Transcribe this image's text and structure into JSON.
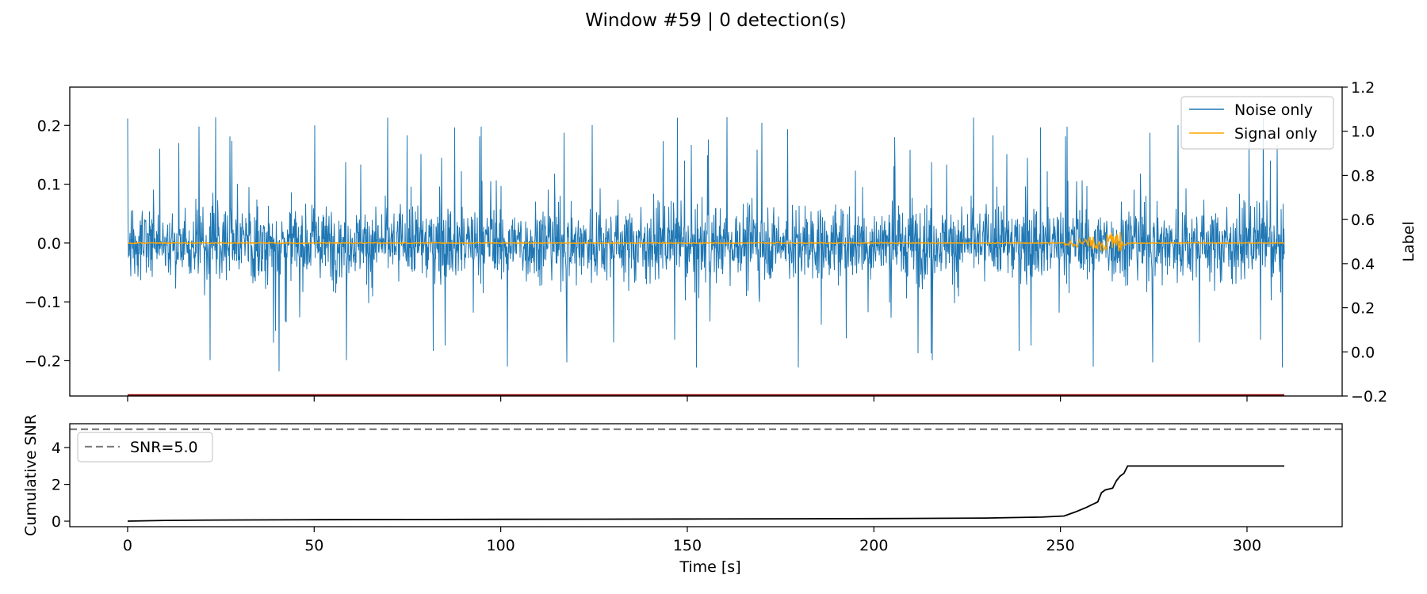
{
  "figure": {
    "title": "Window #59 | 0 detection(s)"
  },
  "chart_data": [
    {
      "type": "line",
      "panel": "waveform",
      "xlim": [
        -15.5,
        325.5
      ],
      "ylim": [
        -0.26,
        0.265
      ],
      "y2lim": [
        -0.2,
        1.2
      ],
      "xlabel": "",
      "ylabel": "",
      "y2label": "Label",
      "yticks": [
        -0.2,
        -0.1,
        0.0,
        0.1,
        0.2
      ],
      "ytick_labels": [
        "−0.2",
        "−0.1",
        "0.0",
        "0.1",
        "0.2"
      ],
      "y2ticks": [
        -0.2,
        0.0,
        0.2,
        0.4,
        0.6,
        0.8,
        1.0,
        1.2
      ],
      "y2tick_labels": [
        "−0.2",
        "0.0",
        "0.2",
        "0.4",
        "0.6",
        "0.8",
        "1.0",
        "1.2"
      ],
      "xticks": [
        0,
        50,
        100,
        150,
        200,
        250,
        300
      ],
      "legend_position": "upper right",
      "legend": [
        "Noise only",
        "Signal only"
      ],
      "series": [
        {
          "name": "Noise only",
          "color": "#1f77b4",
          "kind": "noise",
          "x_range": [
            0,
            310
          ],
          "amplitude_envelope": [
            -0.24,
            0.24
          ]
        },
        {
          "name": "Signal only",
          "color": "#ffa500",
          "kind": "event",
          "x_range": [
            0,
            310
          ],
          "event_window": [
            251,
            268
          ],
          "event_peak_time": 266,
          "event_peak_amplitude": 0.022
        },
        {
          "name": "",
          "color": "#8b0000",
          "kind": "label",
          "axis": "y2",
          "x": [
            0,
            310
          ],
          "y": [
            -0.2,
            -0.2
          ]
        }
      ],
      "grid": false
    },
    {
      "type": "line",
      "panel": "snr",
      "xlim": [
        -15.5,
        325.5
      ],
      "ylim": [
        -0.3,
        5.3
      ],
      "xlabel": "Time [s]",
      "ylabel": "Cumulative SNR",
      "yticks": [
        0,
        2,
        4
      ],
      "ytick_labels": [
        "0",
        "2",
        "4"
      ],
      "xticks": [
        0,
        50,
        100,
        150,
        200,
        250,
        300
      ],
      "xtick_labels": [
        "0",
        "50",
        "100",
        "150",
        "200",
        "250",
        "300"
      ],
      "threshold": 5.0,
      "legend_position": "upper left",
      "legend": [
        "SNR=5.0"
      ],
      "series": [
        {
          "name": "",
          "color": "#000000",
          "x": [
            0,
            10,
            25,
            50,
            100,
            150,
            200,
            230,
            245,
            251,
            254,
            257,
            260,
            261,
            262,
            264,
            265,
            266,
            267,
            268,
            270,
            290,
            310
          ],
          "y": [
            0.0,
            0.04,
            0.06,
            0.08,
            0.1,
            0.12,
            0.14,
            0.17,
            0.22,
            0.28,
            0.5,
            0.75,
            1.05,
            1.55,
            1.7,
            1.8,
            2.2,
            2.45,
            2.6,
            3.0,
            3.0,
            3.0,
            3.0
          ]
        }
      ],
      "grid": false
    }
  ]
}
